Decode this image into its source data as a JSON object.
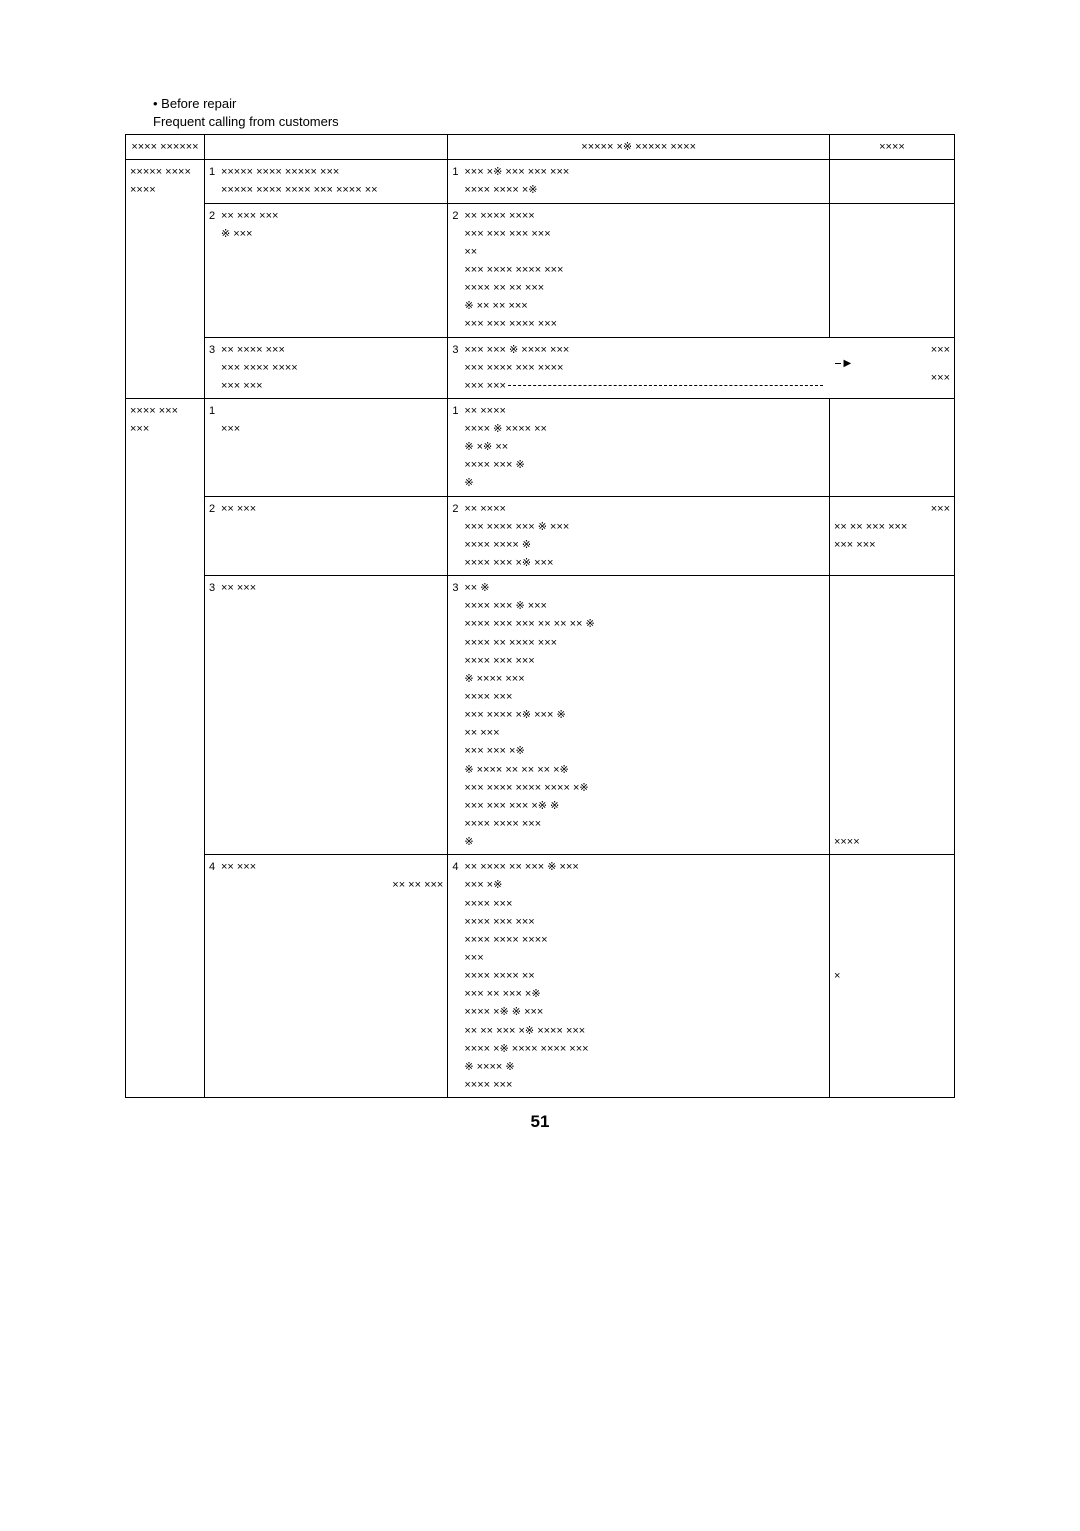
{
  "heading_line1": "• Before repair",
  "heading_line2": "Frequent calling from customers",
  "header": {
    "col1": "×××× ××××××",
    "col3": "××××× ×※ ××××× ××××",
    "col4": "××××"
  },
  "sectionA": {
    "col1": "××××× ×××× ××××",
    "r1c2": "××××× ×××× ××××× ×××",
    "r1c2b": "××××× ×××× ×××× ××× ×××× ××",
    "r1c3": "××× ×※ ××× ××× ×××",
    "r1c3b": "×××× ×××× ×※",
    "r2c2": "×× ××× ×××",
    "r2c2b": "※ ×××",
    "r2c3": "×× ×××× ××××",
    "r2c3b": "××× ××× ××× ×××",
    "r2c3c": "××",
    "r2c3d": "××× ×××× ×××× ×××",
    "r2c3e": "×××× ×× ×× ×××",
    "r2c3f": "※ ×× ×× ×××",
    "r2c3g": "××× ××× ×××× ×××",
    "r3c2": "×× ×××× ×××",
    "r3c2b": "××× ×××× ××××",
    "r3c2c": "××× ×××",
    "r3c3": "××× ××× ※ ×××× ×××",
    "r3c3b": "××× ×××× ××× ××××",
    "r3c3c": "××× ×××",
    "r3c4": "×××",
    "r3c4b": "×××"
  },
  "sectionB": {
    "col1": "×××× ××× ×××",
    "r1c2": "",
    "r1c2b": "×××",
    "r1c3": "×× ××××",
    "r1c3b": "×××× ※ ×××× ××",
    "r1c3c": "※ ×※ ××",
    "r1c3d": "×××× ××× ※",
    "r1c3e": "※",
    "r2c2": "×× ×××",
    "r2c3": "×× ××××",
    "r2c3b": "",
    "r2c3c": "××× ×××× ××× ※ ×××",
    "r2c3d": "",
    "r2c3e": "×××× ×××× ※",
    "r2c3f": "×××× ××× ×※ ×××",
    "r2c4": "×××",
    "r2c4b": "×× ×× ××× ×××",
    "r2c4c": "××× ×××",
    "r3c2": "×× ×××",
    "r3c3": "×× ※",
    "r3c3b": "×××× ××× ※ ×××",
    "r3c3c": "×××× ××× ××× ×× ×× ×× ※",
    "r3c3d": "×××× ×× ×××× ×××",
    "r3c3e": "×××× ××× ×××",
    "r3c3f": "※ ×××× ×××",
    "r3c3g": "",
    "r3c3h": "×××× ×××",
    "r3c3i": "××× ×××× ×※ ××× ※",
    "r3c3j": "×× ×××",
    "r3c3k": "××× ××× ×※",
    "r3c3l": "※ ×××× ×× ×× ×× ×※",
    "r3c3m": "××× ×××× ×××× ×××× ×※",
    "r3c3n": "××× ××× ××× ×※ ※",
    "r3c3o": "×××× ×××× ×××",
    "r3c3p": "※",
    "r3c4": "××××",
    "r4c2": "×× ×××",
    "r4c2b": "×× ×× ×××",
    "r4c3": "×× ×××× ×× ××× ※ ×××",
    "r4c3b": "××× ×※",
    "r4c3c": "×××× ×××",
    "r4c3d": "×××× ××× ×××",
    "r4c3e": "×××× ×××× ××××",
    "r4c3f": "×××",
    "r4c3g": "×××× ×××× ××",
    "r4c3h": "××× ×× ××× ×※",
    "r4c3i": "×××× ×※ ※ ×××",
    "r4c3j": "×× ×× ××× ×※ ×××× ×××",
    "r4c3k": "×××× ×※ ×××× ×××× ×××",
    "r4c3l": "※ ×××× ※",
    "r4c3m": "×××× ×××",
    "r4c4": "×"
  },
  "page_number": "51",
  "colors": {
    "text": "#000000",
    "background": "#ffffff",
    "border": "#000000"
  }
}
